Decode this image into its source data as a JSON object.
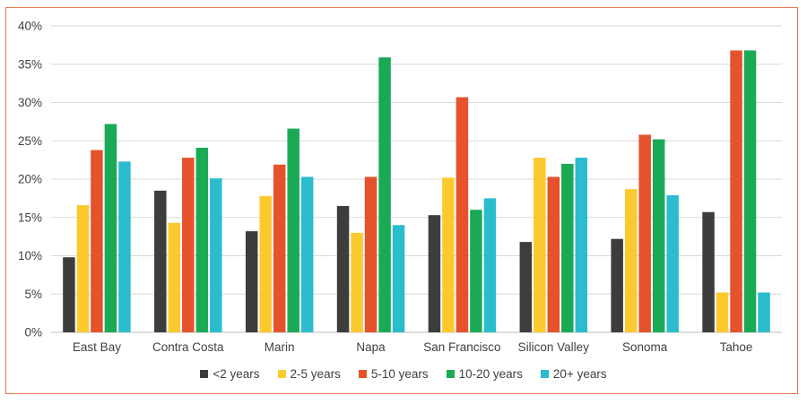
{
  "chart_data": {
    "type": "bar",
    "title": "",
    "xlabel": "",
    "ylabel": "",
    "ylim": [
      0,
      40
    ],
    "y_tick_labels": [
      "0%",
      "5%",
      "10%",
      "15%",
      "20%",
      "25%",
      "30%",
      "35%",
      "40%"
    ],
    "grid": "horizontal",
    "legend_position": "bottom",
    "categories": [
      "East Bay",
      "Contra Costa",
      "Marin",
      "Napa",
      "San Francisco",
      "Silicon Valley",
      "Sonoma",
      "Tahoe"
    ],
    "series": [
      {
        "name": "<2 years",
        "color": "#3d3d3d",
        "values": [
          9.8,
          18.5,
          13.2,
          16.5,
          15.3,
          11.8,
          12.2,
          15.7
        ]
      },
      {
        "name": "2-5 years",
        "color": "#fcc92f",
        "values": [
          16.6,
          14.3,
          17.8,
          13.0,
          20.2,
          22.8,
          18.7,
          5.2
        ]
      },
      {
        "name": "5-10 years",
        "color": "#e5522b",
        "values": [
          23.8,
          22.8,
          21.9,
          20.3,
          30.7,
          20.3,
          25.8,
          36.8
        ]
      },
      {
        "name": "10-20 years",
        "color": "#1aaa55",
        "values": [
          27.2,
          24.1,
          26.6,
          35.9,
          16.0,
          22.0,
          25.2,
          36.8
        ]
      },
      {
        "name": "20+ years",
        "color": "#2bbcce",
        "values": [
          22.3,
          20.1,
          20.3,
          14.0,
          17.5,
          22.8,
          17.9,
          5.2
        ]
      }
    ]
  },
  "colors": {
    "frame_border": "#e8734a",
    "gridline": "#d9d9d9",
    "text": "#404040"
  }
}
